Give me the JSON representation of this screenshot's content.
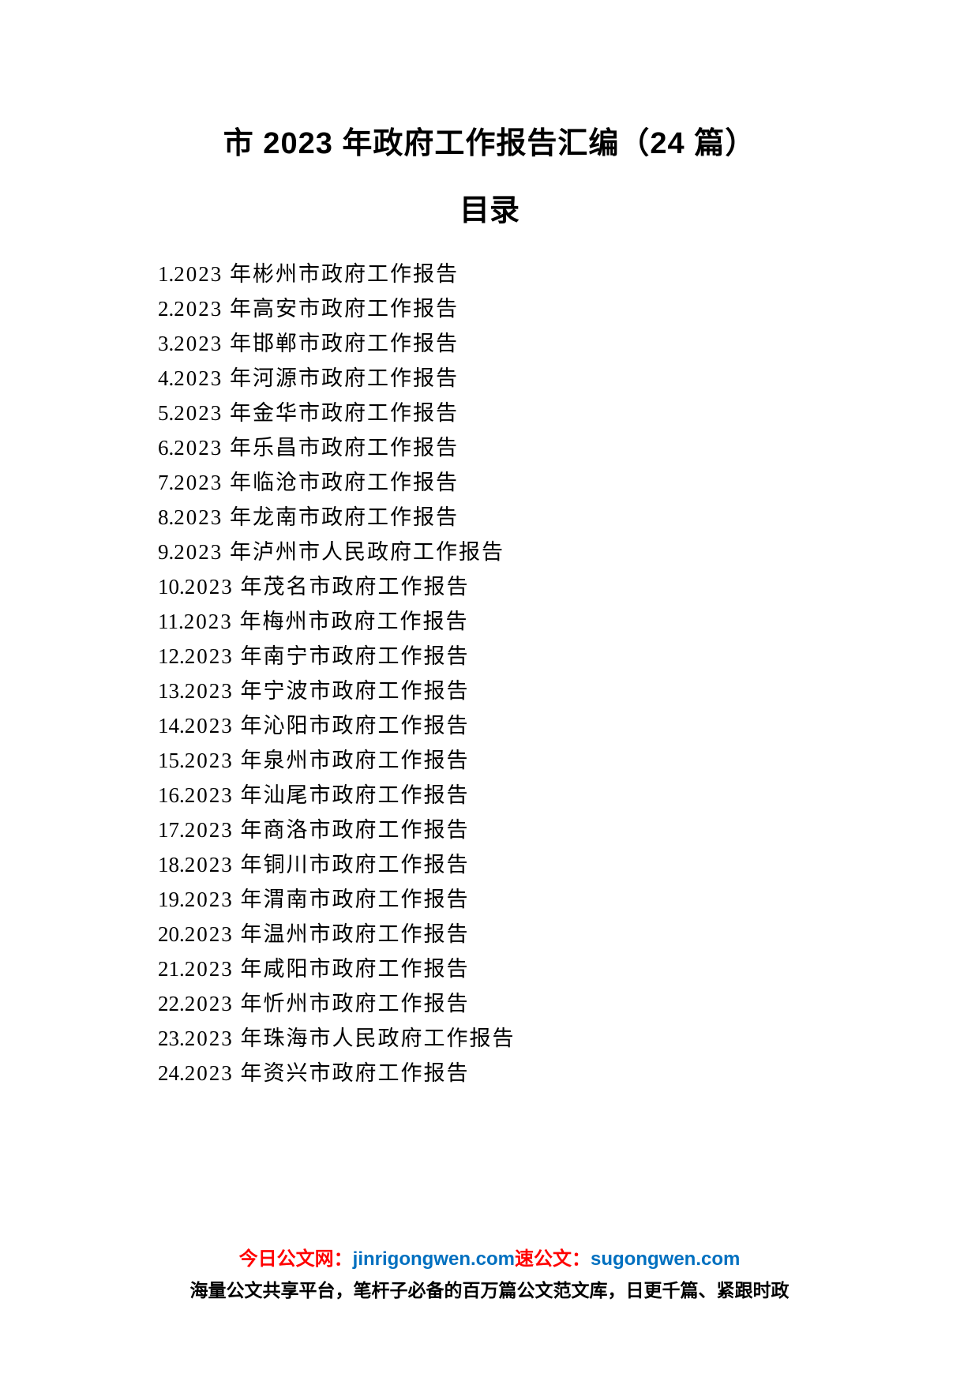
{
  "title": "市 2023 年政府工作报告汇编（24 篇）",
  "subtitle": "目录",
  "toc_items": [
    {
      "num": "1.",
      "text": "2023 年彬州市政府工作报告"
    },
    {
      "num": "2.",
      "text": "2023 年高安市政府工作报告"
    },
    {
      "num": "3.",
      "text": "2023 年邯郸市政府工作报告"
    },
    {
      "num": "4.",
      "text": "2023 年河源市政府工作报告"
    },
    {
      "num": "5.",
      "text": "2023 年金华市政府工作报告"
    },
    {
      "num": "6.",
      "text": "2023 年乐昌市政府工作报告"
    },
    {
      "num": "7.",
      "text": "2023 年临沧市政府工作报告"
    },
    {
      "num": "8.",
      "text": "2023 年龙南市政府工作报告"
    },
    {
      "num": "9.",
      "text": "2023 年泸州市人民政府工作报告"
    },
    {
      "num": "10.",
      "text": "2023 年茂名市政府工作报告"
    },
    {
      "num": "11.",
      "text": "2023 年梅州市政府工作报告"
    },
    {
      "num": "12.",
      "text": "2023 年南宁市政府工作报告"
    },
    {
      "num": "13.",
      "text": "2023 年宁波市政府工作报告"
    },
    {
      "num": "14.",
      "text": "2023 年沁阳市政府工作报告"
    },
    {
      "num": "15.",
      "text": "2023 年泉州市政府工作报告"
    },
    {
      "num": "16.",
      "text": "2023 年汕尾市政府工作报告"
    },
    {
      "num": "17.",
      "text": "2023 年商洛市政府工作报告"
    },
    {
      "num": "18.",
      "text": "2023 年铜川市政府工作报告"
    },
    {
      "num": "19.",
      "text": "2023 年渭南市政府工作报告"
    },
    {
      "num": "20.",
      "text": "2023 年温州市政府工作报告"
    },
    {
      "num": "21.",
      "text": "2023 年咸阳市政府工作报告"
    },
    {
      "num": "22.",
      "text": "2023 年忻州市政府工作报告"
    },
    {
      "num": "23.",
      "text": "2023 年珠海市人民政府工作报告"
    },
    {
      "num": "24.",
      "text": "2023 年资兴市政府工作报告"
    }
  ],
  "footer": {
    "line1_part1": "今日公文网：",
    "line1_part2": "jinrigongwen.com",
    "line1_part3": "速公文：",
    "line1_part4": "sugongwen.com",
    "line2": "海量公文共享平台，笔杆子必备的百万篇公文范文库，日更千篇、紧跟时政"
  },
  "colors": {
    "red": "#ff0000",
    "blue": "#0070c0",
    "black": "#000000",
    "background": "#ffffff"
  }
}
